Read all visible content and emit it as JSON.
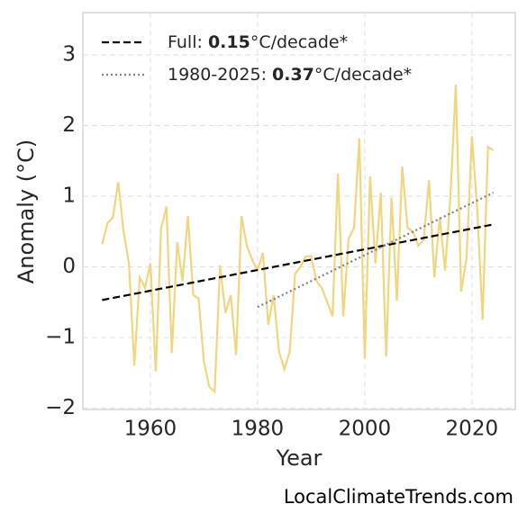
{
  "chart_data": {
    "type": "line",
    "x_label": "Year",
    "y_label": "Anomaly (°C)",
    "watermark": "LocalClimateTrends.com",
    "xlim": [
      1947.4,
      2028.1
    ],
    "xticks": [
      1960,
      1980,
      2000,
      2020
    ],
    "ylim": [
      -2.02,
      3.6
    ],
    "yticks": [
      {
        "value": -2,
        "label": "−2"
      },
      {
        "value": -1,
        "label": "−1"
      },
      0,
      1,
      2,
      3
    ],
    "grid": true,
    "legend": "upper left",
    "series": [
      {
        "color": "#f0d67e",
        "style": "solid",
        "x": [
          1951,
          1952,
          1953,
          1954,
          1955,
          1956,
          1957,
          1958,
          1959,
          1960,
          1961,
          1962,
          1963,
          1964,
          1965,
          1966,
          1967,
          1968,
          1969,
          1970,
          1971,
          1972,
          1973,
          1974,
          1975,
          1976,
          1977,
          1978,
          1979,
          1980,
          1981,
          1982,
          1983,
          1984,
          1985,
          1986,
          1987,
          1988,
          1989,
          1990,
          1991,
          1992,
          1993,
          1994,
          1995,
          1996,
          1997,
          1998,
          1999,
          2000,
          2001,
          2002,
          2003,
          2004,
          2005,
          2006,
          2007,
          2008,
          2009,
          2010,
          2011,
          2012,
          2013,
          2014,
          2015,
          2016,
          2017,
          2018,
          2019,
          2020,
          2021,
          2022,
          2023,
          2024
        ],
        "values": [
          0.32,
          0.62,
          0.7,
          1.2,
          0.5,
          0.05,
          -1.4,
          -0.15,
          -0.3,
          0.05,
          -1.48,
          0.55,
          0.85,
          -1.22,
          0.35,
          -0.2,
          0.72,
          -0.4,
          -0.45,
          -1.35,
          -1.7,
          -1.77,
          0.02,
          -0.65,
          -0.4,
          -1.25,
          0.72,
          0.3,
          0.1,
          -0.05,
          0.2,
          -0.82,
          -0.4,
          -1.2,
          -1.45,
          -1.2,
          -0.1,
          0.0,
          0.15,
          0.15,
          -0.2,
          -0.3,
          -0.5,
          -0.7,
          1.32,
          -0.7,
          0.4,
          0.55,
          1.82,
          -1.3,
          1.28,
          0.05,
          1.05,
          -1.27,
          0.98,
          -0.48,
          1.42,
          0.55,
          0.5,
          0.3,
          0.38,
          1.23,
          -0.15,
          0.7,
          -0.05,
          1.0,
          2.58,
          -0.35,
          0.12,
          1.85,
          0.82,
          -0.75,
          1.7,
          1.65
        ]
      },
      {
        "name": "Full: 0.15°C/decade*",
        "color": "#000000",
        "style": "dashed",
        "x": [
          1951,
          2024
        ],
        "values": [
          -0.47,
          0.6
        ]
      },
      {
        "name": "1980-2025: 0.37°C/decade*",
        "color": "#808080",
        "style": "dotted",
        "x": [
          1980,
          2024
        ],
        "values": [
          -0.57,
          1.05
        ]
      }
    ]
  }
}
